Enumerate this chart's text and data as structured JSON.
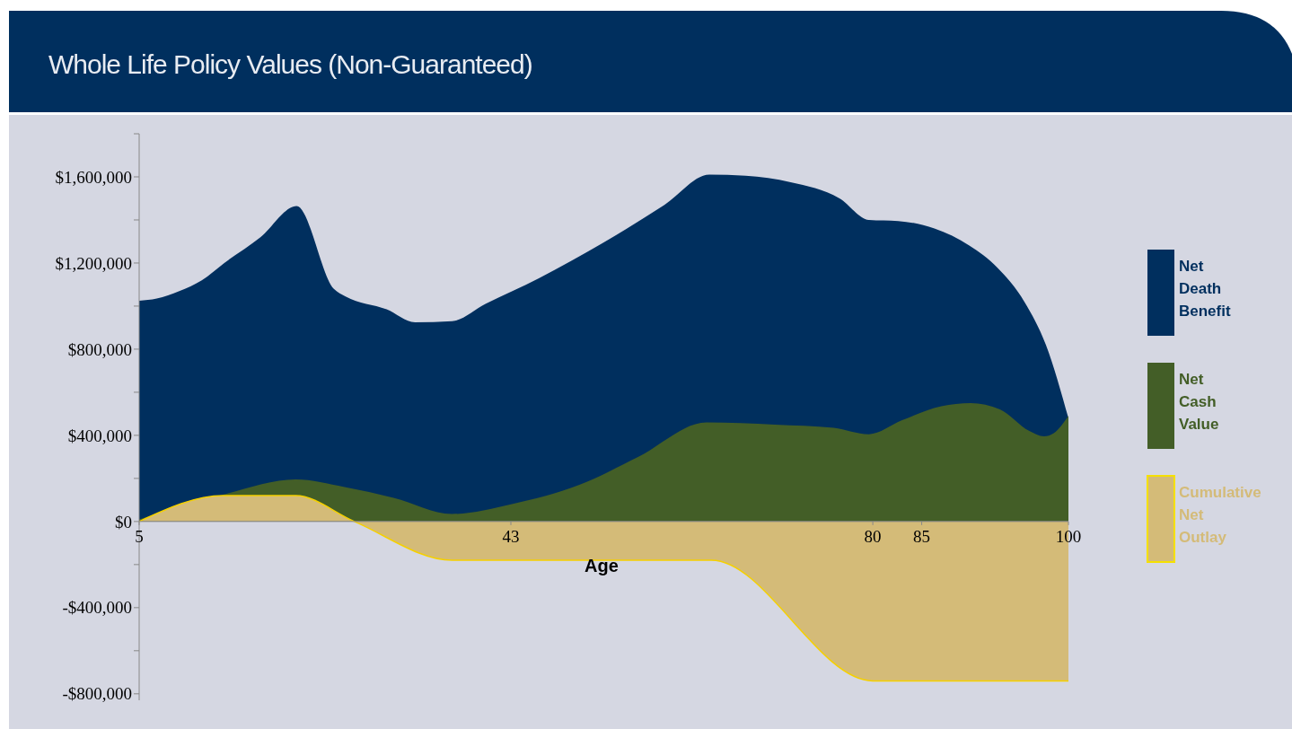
{
  "chart_data": {
    "type": "area",
    "title": "Whole Life Policy Values (Non-Guaranteed)",
    "xlabel": "Age",
    "legend": "right",
    "xlim": [
      5,
      100
    ],
    "xticks": [
      5,
      43,
      80,
      85,
      100
    ],
    "ylim": [
      -830000,
      1800000
    ],
    "yticks": [
      {
        "value": -800000,
        "label": "-$800,000"
      },
      {
        "value": -600000,
        "label": null
      },
      {
        "value": -400000,
        "label": "-$400,000"
      },
      {
        "value": -200000,
        "label": null
      },
      {
        "value": 0,
        "label": "$0"
      },
      {
        "value": 200000,
        "label": null
      },
      {
        "value": 400000,
        "label": "$400,000"
      },
      {
        "value": 600000,
        "label": null
      },
      {
        "value": 800000,
        "label": "$800,000"
      },
      {
        "value": 1000000,
        "label": null
      },
      {
        "value": 1200000,
        "label": "$1,200,000"
      },
      {
        "value": 1400000,
        "label": null
      },
      {
        "value": 1600000,
        "label": "$1,600,000"
      },
      {
        "value": 1800000,
        "label": null
      }
    ],
    "series": [
      {
        "name": "Net Death Benefit",
        "color": "#002f5e",
        "x": [
          5,
          6.8,
          9.1,
          11.4,
          13.7,
          17.4,
          21.1,
          24.9,
          26.1,
          30.3,
          33.2,
          37,
          40.4,
          45.9,
          52.3,
          58.7,
          63.3,
          67,
          71.6,
          76.6,
          79.6,
          82.6,
          86.3,
          89.9,
          92.7,
          95.5,
          97.7,
          100
        ],
        "values": [
          1025000,
          1035000,
          1070000,
          1120000,
          1200000,
          1320000,
          1465000,
          1080000,
          1045000,
          985000,
          925000,
          930000,
          1010000,
          1130000,
          1290000,
          1470000,
          1610000,
          1605000,
          1575000,
          1500000,
          1400000,
          1395000,
          1360000,
          1280000,
          1180000,
          1020000,
          820000,
          480000
        ]
      },
      {
        "name": "Net Cash Value",
        "color": "#435e27",
        "x": [
          5,
          14,
          21,
          26,
          31,
          37,
          43,
          50,
          56,
          63,
          70,
          76,
          79.6,
          83,
          87,
          90,
          93,
          96,
          97.5,
          98.5,
          100
        ],
        "values": [
          10000,
          130000,
          195000,
          160000,
          110000,
          35000,
          80000,
          170000,
          300000,
          460000,
          450000,
          435000,
          405000,
          470000,
          535000,
          550000,
          520000,
          420000,
          395000,
          410000,
          490000
        ]
      },
      {
        "name": "Cumulative Net Outlay",
        "color": "#d4bb78",
        "x": [
          5,
          13.6,
          21,
          27,
          37,
          63.5,
          80,
          100
        ],
        "values": [
          0,
          120000,
          120000,
          0,
          -180000,
          -180000,
          -740000,
          -740000
        ]
      }
    ]
  }
}
